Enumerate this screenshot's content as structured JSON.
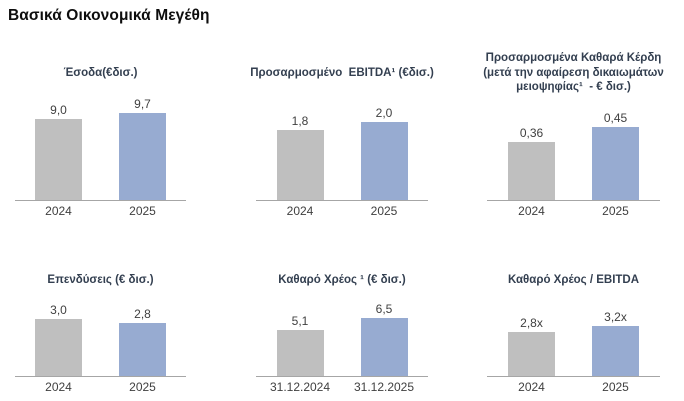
{
  "page_title": "Βασικά Οικονομικά Μεγέθη",
  "colors": {
    "bar_2024": "#BFBFBF",
    "bar_2025": "#97ABD1",
    "chart_title_text": "#333F50",
    "label_text": "#404040",
    "axis_line": "#A6A6A6"
  },
  "chart_data": [
    {
      "type": "bar",
      "title": "Έσοδα(€δισ.)",
      "categories": [
        "2024",
        "2025"
      ],
      "values": [
        9.0,
        9.7
      ],
      "value_labels": [
        "9,0",
        "9,7"
      ],
      "series_colors": [
        "#BFBFBF",
        "#97ABD1"
      ],
      "xlabel": "",
      "ylabel": "",
      "legend": "none",
      "grid": "off"
    },
    {
      "type": "bar",
      "title": "Προσαρμοσμένο  EBITDA¹ (€δισ.)",
      "categories": [
        "2024",
        "2025"
      ],
      "values": [
        1.8,
        2.0
      ],
      "value_labels": [
        "1,8",
        "2,0"
      ],
      "series_colors": [
        "#BFBFBF",
        "#97ABD1"
      ],
      "xlabel": "",
      "ylabel": "",
      "legend": "none",
      "grid": "off"
    },
    {
      "type": "bar",
      "title": "Προσαρμοσμένα Καθαρά Κέρδη\n(μετά την αφαίρεση δικαιωμάτων\nμειοψηφίας¹  - € δισ.)",
      "categories": [
        "2024",
        "2025"
      ],
      "values": [
        0.36,
        0.45
      ],
      "value_labels": [
        "0,36",
        "0,45"
      ],
      "series_colors": [
        "#BFBFBF",
        "#97ABD1"
      ],
      "xlabel": "",
      "ylabel": "",
      "legend": "none",
      "grid": "off"
    },
    {
      "type": "bar",
      "title": "Επενδύσεις (€ δισ.)",
      "categories": [
        "2024",
        "2025"
      ],
      "values": [
        3.0,
        2.8
      ],
      "value_labels": [
        "3,0",
        "2,8"
      ],
      "series_colors": [
        "#BFBFBF",
        "#97ABD1"
      ],
      "xlabel": "",
      "ylabel": "",
      "legend": "none",
      "grid": "off"
    },
    {
      "type": "bar",
      "title": "Καθαρό Χρέος ¹ (€ δισ.)",
      "categories": [
        "31.12.2024",
        "31.12.2025"
      ],
      "values": [
        5.1,
        6.5
      ],
      "value_labels": [
        "5,1",
        "6,5"
      ],
      "series_colors": [
        "#BFBFBF",
        "#97ABD1"
      ],
      "xlabel": "",
      "ylabel": "",
      "legend": "none",
      "grid": "off"
    },
    {
      "type": "bar",
      "title": "Καθαρό Χρέος / EBITDA",
      "categories": [
        "2024",
        "2025"
      ],
      "values": [
        2.8,
        3.2
      ],
      "value_labels": [
        "2,8x",
        "3,2x"
      ],
      "series_colors": [
        "#BFBFBF",
        "#97ABD1"
      ],
      "xlabel": "",
      "ylabel": "",
      "legend": "none",
      "grid": "off"
    }
  ]
}
